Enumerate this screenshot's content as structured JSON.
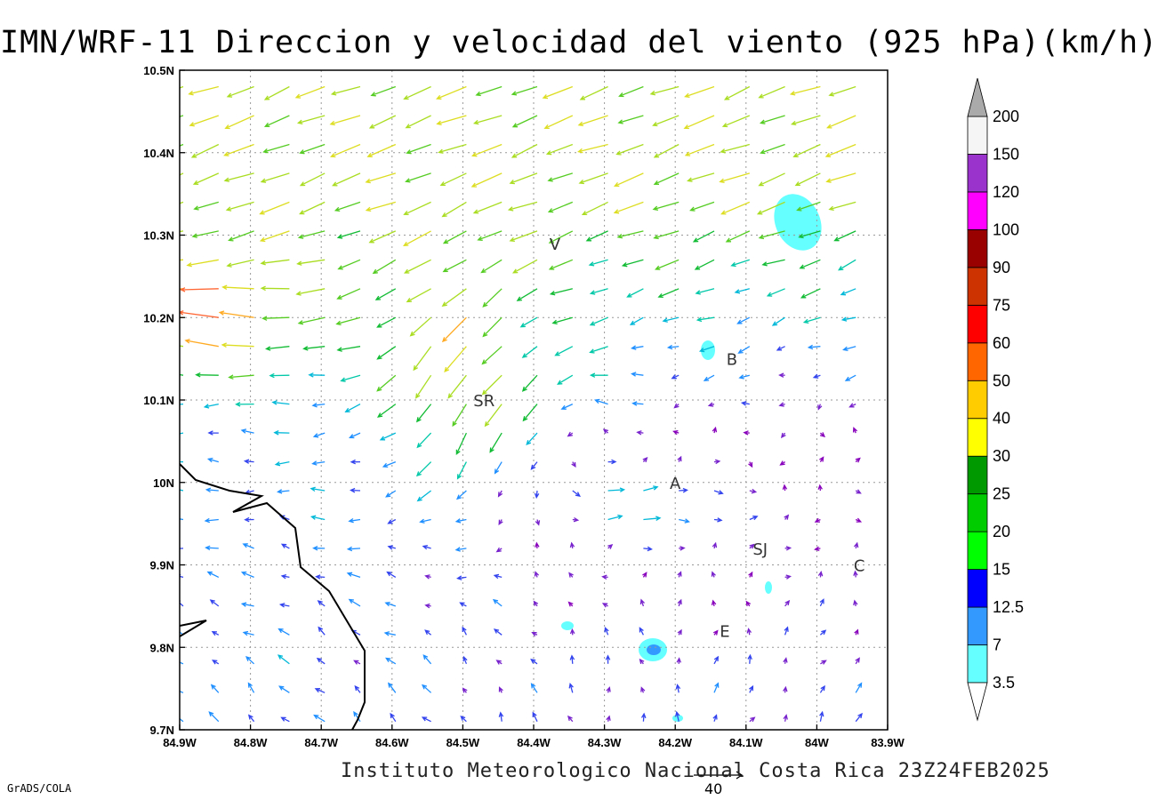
{
  "title": "IMN/WRF-11 Direccion y velocidad del viento (925 hPa)(km/h)",
  "footer": "Instituto Meteorologico Nacional Costa Rica 23Z24FEB2025",
  "credit": "GrADS/COLA",
  "reference_vector": "40",
  "map": {
    "lon_range": [
      -84.9,
      -83.9
    ],
    "lat_range": [
      9.7,
      10.5
    ],
    "x_ticks": [
      "84.9W",
      "84.8W",
      "84.7W",
      "84.6W",
      "84.5W",
      "84.4W",
      "84.3W",
      "84.2W",
      "84.1W",
      "84W",
      "83.9W"
    ],
    "y_ticks": [
      "9.7N",
      "9.8N",
      "9.9N",
      "10N",
      "10.1N",
      "10.2N",
      "10.3N",
      "10.4N",
      "10.5N"
    ],
    "grid": true,
    "cities": [
      {
        "label": "V",
        "lon": -84.37,
        "lat": 10.29
      },
      {
        "label": "B",
        "lon": -84.12,
        "lat": 10.15
      },
      {
        "label": "SR",
        "lon": -84.47,
        "lat": 10.1
      },
      {
        "label": "A",
        "lon": -84.2,
        "lat": 10.0
      },
      {
        "label": "SJ",
        "lon": -84.08,
        "lat": 9.92
      },
      {
        "label": "C",
        "lon": -83.94,
        "lat": 9.9
      },
      {
        "label": "E",
        "lon": -84.13,
        "lat": 9.82
      }
    ]
  },
  "colorbar": {
    "labels": [
      "3.5",
      "7",
      "12.5",
      "15",
      "20",
      "25",
      "30",
      "40",
      "50",
      "60",
      "75",
      "90",
      "100",
      "120",
      "150",
      "200"
    ],
    "colors": [
      "#66ffff",
      "#3399ff",
      "#0000ff",
      "#00ff00",
      "#00cc00",
      "#009900",
      "#ffff00",
      "#ffcc00",
      "#ff6600",
      "#ff0000",
      "#cc3300",
      "#990000",
      "#ff00ff",
      "#9933cc",
      "#f5f5f5",
      "#aaaaaa"
    ]
  }
}
